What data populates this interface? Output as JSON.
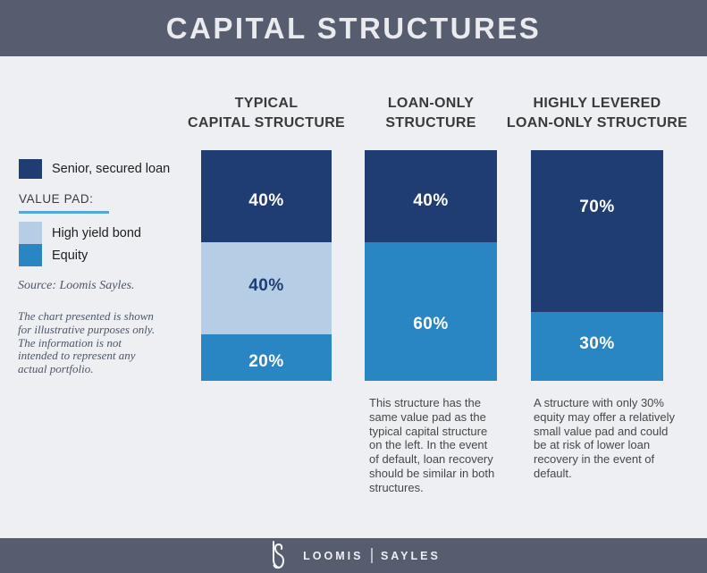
{
  "header": {
    "title": "CAPITAL STRUCTURES"
  },
  "legend": {
    "senior": {
      "label": "Senior, secured loan",
      "color": "#1f3d72"
    },
    "value_pad_heading": "VALUE PAD:",
    "value_pad_rule_color": "#55a6de",
    "items": [
      {
        "label": "High yield bond",
        "color": "#b5cee5"
      },
      {
        "label": "Equity",
        "color": "#2a86c3"
      }
    ]
  },
  "source": "Source: Loomis Sayles.",
  "disclaimer": "The chart presented is shown\nfor illustrative purposes only.\nThe information is not\nintended to represent any\nactual portfolio.",
  "chart_data": {
    "type": "bar",
    "subtype": "100%-stacked-vertical",
    "unit": "percent",
    "legend_position": "left",
    "colors": {
      "senior_secured_loan": "#1f3d72",
      "high_yield_bond": "#b5cee5",
      "equity": "#2a86c3"
    },
    "categories": [
      "TYPICAL CAPITAL STRUCTURE",
      "LOAN-ONLY STRUCTURE",
      "HIGHLY LEVERED LOAN-ONLY STRUCTURE"
    ],
    "series": [
      {
        "name": "Senior, secured loan",
        "values": [
          40,
          40,
          70
        ]
      },
      {
        "name": "High yield bond",
        "values": [
          40,
          0,
          0
        ]
      },
      {
        "name": "Equity",
        "values": [
          20,
          60,
          30
        ]
      }
    ],
    "charts": [
      {
        "title": "TYPICAL\nCAPITAL STRUCTURE",
        "segments": [
          {
            "name": "Senior, secured loan",
            "value": 40,
            "label": "40%",
            "color": "#1f3d72",
            "label_color": "#ffffff",
            "label_dy": 5
          },
          {
            "name": "High yield bond",
            "value": 40,
            "label": "40%",
            "color": "#b5cee5",
            "label_color": "#1f3d72",
            "label_dy": -3
          },
          {
            "name": "Equity",
            "value": 20,
            "label": "20%",
            "color": "#2a86c3",
            "label_color": "#ffffff",
            "label_dy": 5
          }
        ],
        "note": ""
      },
      {
        "title": "LOAN-ONLY\nSTRUCTURE",
        "segments": [
          {
            "name": "Senior, secured loan",
            "value": 40,
            "label": "40%",
            "color": "#1f3d72",
            "label_color": "#ffffff",
            "label_dy": 5
          },
          {
            "name": "Equity",
            "value": 60,
            "label": "60%",
            "color": "#2a86c3",
            "label_color": "#ffffff",
            "label_dy": 14
          }
        ],
        "note": "This structure has the\nsame value pad as the\ntypical capital structure\non the left. In the event\nof default, loan recovery\nshould be similar in both\nstructures."
      },
      {
        "title": "HIGHLY LEVERED\nLOAN-ONLY STRUCTURE",
        "segments": [
          {
            "name": "Senior, secured loan",
            "value": 70,
            "label": "70%",
            "color": "#1f3d72",
            "label_color": "#ffffff",
            "label_dy": -26
          },
          {
            "name": "Equity",
            "value": 30,
            "label": "30%",
            "color": "#2a86c3",
            "label_color": "#ffffff",
            "label_dy": -2
          }
        ],
        "note": "A structure with only 30%\nequity may offer a relatively\nsmall value pad and could\nbe at risk of lower loan\nrecovery in the event of\ndefault."
      }
    ]
  },
  "footer": {
    "logo": "LS",
    "brand_left": "LOOMIS",
    "brand_right": "SAYLES"
  }
}
